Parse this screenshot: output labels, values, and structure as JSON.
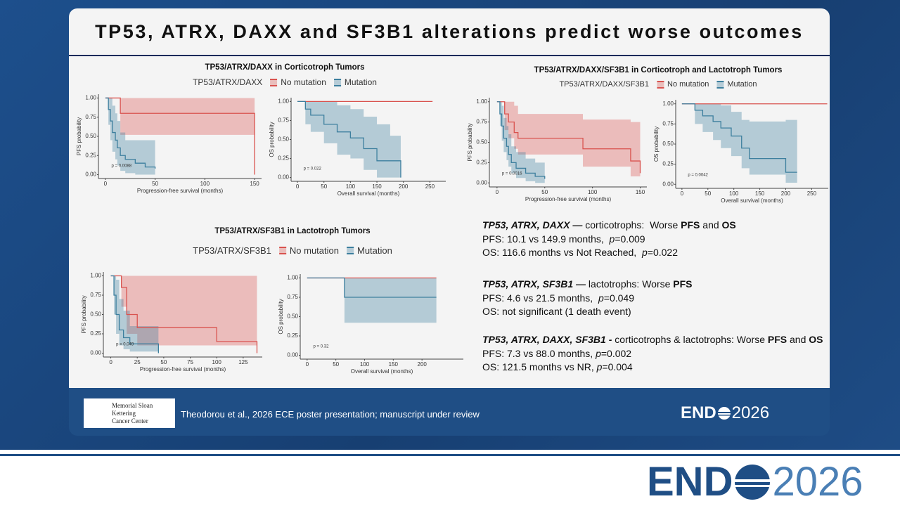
{
  "header": {
    "title": "TP53, ATRX, DAXX and SF3B1 alterations predict worse outcomes"
  },
  "panels": [
    {
      "title": "TP53/ATRX/DAXX in Corticotroph Tumors",
      "legend_title": "TP53/ATRX/DAXX",
      "legend": [
        {
          "name": "No mutation",
          "color": "#d9534f"
        },
        {
          "name": "Mutation",
          "color": "#3d7f9e"
        }
      ]
    },
    {
      "title": "TP53/ATRX/DAXX/SF3B1 in Corticotroph and Lactotroph Tumors",
      "legend_title": "TP53/ATRX/DAXX/SF3B1",
      "legend": [
        {
          "name": "No mutation",
          "color": "#d9534f"
        },
        {
          "name": "Mutation",
          "color": "#3d7f9e"
        }
      ]
    },
    {
      "title": "TP53/ATRX/SF3B1 in Lactotroph Tumors",
      "legend_title": "TP53/ATRX/SF3B1",
      "legend": [
        {
          "name": "No mutation",
          "color": "#d9534f"
        },
        {
          "name": "Mutation",
          "color": "#3d7f9e"
        }
      ]
    }
  ],
  "chart_data": [
    {
      "type": "km",
      "xlabel": "Progression-free survival (months)",
      "ylabel": "PFS probability",
      "annotation": "p = 0.0088",
      "xlim": [
        -7,
        157
      ],
      "ylim": [
        -0.05,
        1.05
      ],
      "xticks": [
        0,
        50,
        100,
        150
      ],
      "yticks": [
        {
          "value": 0,
          "label": "0.00"
        },
        {
          "value": 0.25,
          "label": "0.25"
        },
        {
          "value": 0.5,
          "label": "0.50"
        },
        {
          "value": 0.75,
          "label": "0.75"
        },
        {
          "value": 1,
          "label": "1.00"
        }
      ],
      "series": [
        {
          "color": "#d9534f",
          "x": [
            0,
            15,
            150
          ],
          "values": [
            1,
            0.8,
            0
          ],
          "lower": [
            1,
            0.52,
            0.52
          ],
          "upper": [
            1,
            1,
            1
          ]
        },
        {
          "color": "#3d7f9e",
          "x": [
            0,
            3,
            5,
            7,
            10,
            12,
            15,
            20,
            30,
            40,
            50
          ],
          "values": [
            1,
            0.85,
            0.7,
            0.55,
            0.45,
            0.35,
            0.25,
            0.2,
            0.15,
            0.1,
            0.08
          ],
          "lower": [
            1,
            0.65,
            0.45,
            0.3,
            0.2,
            0.12,
            0.05,
            0.02,
            0,
            0,
            0
          ],
          "upper": [
            1,
            1,
            1,
            0.9,
            0.8,
            0.7,
            0.55,
            0.45,
            0.45,
            0.45,
            0.45
          ]
        }
      ]
    },
    {
      "type": "km",
      "xlabel": "Overall survival (months)",
      "ylabel": "OS probability",
      "annotation": "p = 0.022",
      "xlim": [
        -12,
        280
      ],
      "ylim": [
        -0.05,
        1.05
      ],
      "xticks": [
        0,
        50,
        100,
        150,
        200,
        250
      ],
      "yticks": [
        {
          "value": 0,
          "label": "0.00"
        },
        {
          "value": 0.25,
          "label": "0.25"
        },
        {
          "value": 0.5,
          "label": "0.50"
        },
        {
          "value": 0.75,
          "label": "0.75"
        },
        {
          "value": 1,
          "label": "1.00"
        }
      ],
      "series": [
        {
          "color": "#d9534f",
          "x": [
            0,
            255
          ],
          "values": [
            1,
            1
          ],
          "lower": [
            1,
            1
          ],
          "upper": [
            1,
            1
          ]
        },
        {
          "color": "#3d7f9e",
          "x": [
            0,
            15,
            25,
            50,
            75,
            100,
            125,
            150,
            175,
            195
          ],
          "values": [
            1,
            0.9,
            0.82,
            0.7,
            0.6,
            0.52,
            0.38,
            0.22,
            0.22,
            0
          ],
          "lower": [
            1,
            0.7,
            0.6,
            0.45,
            0.3,
            0.25,
            0.1,
            0,
            0,
            0
          ],
          "upper": [
            1,
            1,
            1,
            1,
            0.95,
            0.9,
            0.8,
            0.7,
            0.55,
            0.55
          ]
        }
      ]
    },
    {
      "type": "km",
      "xlabel": "Progression-free survival (months)",
      "ylabel": "PFS probability",
      "annotation": "p = 0.0016",
      "xlim": [
        -8,
        157
      ],
      "ylim": [
        -0.05,
        1.05
      ],
      "xticks": [
        0,
        50,
        100,
        150
      ],
      "yticks": [
        {
          "value": 0,
          "label": "0.00"
        },
        {
          "value": 0.25,
          "label": "0.25"
        },
        {
          "value": 0.5,
          "label": "0.50"
        },
        {
          "value": 0.75,
          "label": "0.75"
        },
        {
          "value": 1,
          "label": "1.00"
        }
      ],
      "series": [
        {
          "color": "#d9534f",
          "x": [
            0,
            8,
            12,
            18,
            22,
            90,
            140,
            150
          ],
          "values": [
            1,
            0.85,
            0.75,
            0.62,
            0.55,
            0.42,
            0.27,
            0.12
          ],
          "lower": [
            1,
            0.65,
            0.55,
            0.42,
            0.35,
            0.2,
            0.08,
            0
          ],
          "upper": [
            1,
            1,
            1,
            0.95,
            0.85,
            0.78,
            0.75,
            0.75
          ]
        },
        {
          "color": "#3d7f9e",
          "x": [
            0,
            3,
            5,
            7,
            10,
            12,
            15,
            20,
            30,
            40,
            50
          ],
          "values": [
            1,
            0.85,
            0.7,
            0.55,
            0.45,
            0.35,
            0.25,
            0.18,
            0.12,
            0.08,
            0.05
          ],
          "lower": [
            1,
            0.7,
            0.52,
            0.38,
            0.28,
            0.2,
            0.12,
            0.06,
            0.02,
            0,
            0
          ],
          "upper": [
            1,
            1,
            0.95,
            0.8,
            0.7,
            0.6,
            0.45,
            0.38,
            0.3,
            0.25,
            0.25
          ]
        }
      ]
    },
    {
      "type": "km",
      "xlabel": "Overall survival (months)",
      "ylabel": "OS probability",
      "annotation": "p = 0.0042",
      "xlim": [
        -12,
        282
      ],
      "ylim": [
        -0.05,
        1.05
      ],
      "xticks": [
        0,
        50,
        100,
        150,
        200,
        250
      ],
      "yticks": [
        {
          "value": 0,
          "label": "0.00"
        },
        {
          "value": 0.25,
          "label": "0.25"
        },
        {
          "value": 0.5,
          "label": "0.50"
        },
        {
          "value": 0.75,
          "label": "0.75"
        },
        {
          "value": 1,
          "label": "1.00"
        }
      ],
      "series": [
        {
          "color": "#d9534f",
          "x": [
            0,
            280
          ],
          "values": [
            1,
            1
          ],
          "lower": [
            1,
            1
          ],
          "upper": [
            1,
            1
          ]
        },
        {
          "color": "#3d7f9e",
          "x": [
            0,
            25,
            40,
            60,
            75,
            95,
            115,
            130,
            200,
            222
          ],
          "values": [
            1,
            0.92,
            0.85,
            0.78,
            0.7,
            0.6,
            0.45,
            0.32,
            0.15,
            0.15
          ],
          "lower": [
            1,
            0.75,
            0.65,
            0.55,
            0.45,
            0.35,
            0.2,
            0.12,
            0.02,
            0.02
          ],
          "upper": [
            1,
            1,
            1,
            1,
            0.98,
            0.9,
            0.8,
            0.78,
            0.8,
            0.8
          ]
        }
      ]
    },
    {
      "type": "km",
      "xlabel": "Progression-free survival (months)",
      "ylabel": "PFS probability",
      "annotation": "p = 0.049",
      "xlim": [
        -7,
        143
      ],
      "ylim": [
        -0.05,
        1.05
      ],
      "xticks": [
        0,
        25,
        50,
        75,
        100,
        125
      ],
      "yticks": [
        {
          "value": 0,
          "label": "0.00"
        },
        {
          "value": 0.25,
          "label": "0.25"
        },
        {
          "value": 0.5,
          "label": "0.50"
        },
        {
          "value": 0.75,
          "label": "0.75"
        },
        {
          "value": 1,
          "label": "1.00"
        }
      ],
      "series": [
        {
          "color": "#d9534f",
          "x": [
            0,
            10,
            15,
            25,
            100,
            138
          ],
          "values": [
            1,
            0.85,
            0.5,
            0.33,
            0.15,
            0
          ],
          "lower": [
            1,
            0.6,
            0.25,
            0.1,
            0.1,
            0.1
          ],
          "upper": [
            1,
            1,
            1,
            1,
            1,
            1
          ]
        },
        {
          "color": "#3d7f9e",
          "x": [
            0,
            3,
            5,
            8,
            12,
            18,
            45
          ],
          "values": [
            1,
            0.75,
            0.5,
            0.3,
            0.2,
            0.12,
            0
          ],
          "lower": [
            1,
            0.5,
            0.25,
            0.1,
            0.05,
            0.02,
            0
          ],
          "upper": [
            1,
            1,
            0.95,
            0.7,
            0.55,
            0.35,
            0.35
          ]
        }
      ]
    },
    {
      "type": "km",
      "xlabel": "Overall survival (months)",
      "ylabel": "OS probability",
      "annotation": "p = 0.32",
      "xlim": [
        -12,
        272
      ],
      "ylim": [
        -0.05,
        1.05
      ],
      "xticks": [
        0,
        50,
        100,
        150,
        200
      ],
      "yticks": [
        {
          "value": 0,
          "label": "0.00"
        },
        {
          "value": 0.25,
          "label": "0.25"
        },
        {
          "value": 0.5,
          "label": "0.50"
        },
        {
          "value": 0.75,
          "label": "0.75"
        },
        {
          "value": 1,
          "label": "1.00"
        }
      ],
      "series": [
        {
          "color": "#d9534f",
          "x": [
            0,
            225
          ],
          "values": [
            1,
            1
          ],
          "lower": [
            1,
            1
          ],
          "upper": [
            1,
            1
          ]
        },
        {
          "color": "#3d7f9e",
          "x": [
            0,
            65,
            225
          ],
          "values": [
            1,
            0.75,
            0.75
          ],
          "lower": [
            1,
            0.42,
            0.42
          ],
          "upper": [
            1,
            1,
            1
          ]
        }
      ]
    }
  ],
  "findings": [
    [
      [
        {
          "text": "TP53, ATRX, DAXX —",
          "style": "bi"
        },
        {
          "text": " corticotrophs:  Worse "
        },
        {
          "text": "PFS",
          "style": "b"
        },
        {
          "text": " and "
        },
        {
          "text": "OS",
          "style": "b"
        }
      ],
      [
        {
          "text": "PFS: 10.1 vs 149.9 months,  "
        },
        {
          "text": "p",
          "style": "i"
        },
        {
          "text": "=0.009"
        }
      ],
      [
        {
          "text": "OS: 116.6 months vs Not Reached,  "
        },
        {
          "text": "p",
          "style": "i"
        },
        {
          "text": "=0.022"
        }
      ]
    ],
    [
      [
        {
          "text": "TP53, ATRX, SF3B1 —",
          "style": "bi"
        },
        {
          "text": " lactotrophs: Worse "
        },
        {
          "text": "PFS",
          "style": "b"
        }
      ],
      [
        {
          "text": "PFS: 4.6 vs 21.5 months,  "
        },
        {
          "text": "p",
          "style": "i"
        },
        {
          "text": "=0.049"
        }
      ],
      [
        {
          "text": "OS: not significant (1 death event)"
        }
      ]
    ],
    [
      [
        {
          "text": "TP53, ATRX, DAXX, SF3B1 -",
          "style": "bi"
        },
        {
          "text": " corticotrophs & lactotrophs: Worse "
        },
        {
          "text": "PFS",
          "style": "b"
        },
        {
          "text": " and "
        },
        {
          "text": "OS",
          "style": "b"
        }
      ],
      [
        {
          "text": "PFS: 7.3 vs 88.0 months, "
        },
        {
          "text": "p",
          "style": "i"
        },
        {
          "text": "=0.002"
        }
      ],
      [
        {
          "text": "OS: 121.5 months vs NR, "
        },
        {
          "text": "p",
          "style": "i"
        },
        {
          "text": "=0.004"
        }
      ]
    ]
  ],
  "footer": {
    "institution": [
      "Memorial Sloan Kettering",
      "Cancer Center"
    ],
    "citation": "Theodorou et al., 2026 ECE poster presentation; manuscript under review",
    "logo": [
      "END",
      "2026"
    ]
  }
}
